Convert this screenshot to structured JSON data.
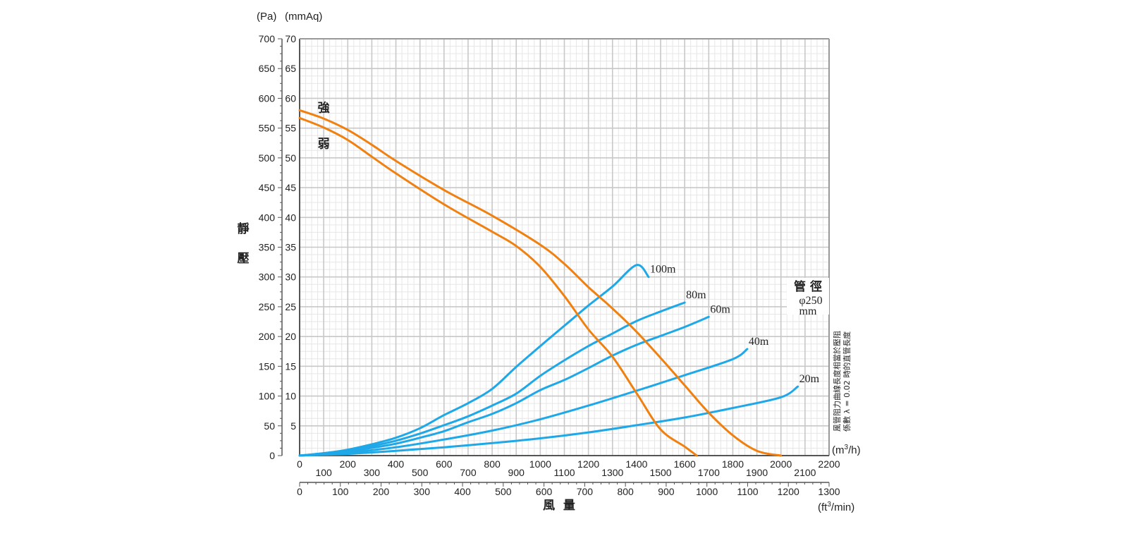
{
  "chart_data": {
    "type": "line",
    "y_axis": {
      "left_unit": "(Pa)",
      "inner_unit": "(mmAq)",
      "label": [
        "靜",
        "壓"
      ],
      "pa_ticks": [
        "0",
        "50",
        "100",
        "150",
        "200",
        "250",
        "300",
        "350",
        "400",
        "450",
        "500",
        "550",
        "600",
        "650",
        "700"
      ],
      "mmaq_ticks": [
        "5",
        "10",
        "15",
        "20",
        "25",
        "30",
        "35",
        "40",
        "45",
        "50",
        "55",
        "60",
        "65",
        "70"
      ],
      "ylim": [
        0,
        700
      ]
    },
    "x_axis": {
      "label": "風  量",
      "m3h_unit_pre": "(m",
      "m3h_unit_sup": "3",
      "m3h_unit_post": "/h)",
      "m3h_ticks_upper": [
        "0",
        "200",
        "400",
        "600",
        "800",
        "1000",
        "1200",
        "1400",
        "1600",
        "1800",
        "2000",
        "2200"
      ],
      "m3h_ticks_lower": [
        "100",
        "300",
        "500",
        "700",
        "900",
        "1100",
        "1300",
        "1500",
        "1700",
        "1900",
        "2100"
      ],
      "xlim": [
        0,
        2200
      ],
      "cfm_unit_pre": "(ft",
      "cfm_unit_sup": "3",
      "cfm_unit_post": "/min)",
      "cfm_ticks": [
        "0",
        "100",
        "200",
        "300",
        "400",
        "500",
        "600",
        "700",
        "800",
        "900",
        "1000",
        "1100",
        "1200",
        "1300"
      ]
    },
    "fan_curves": [
      {
        "name": "強",
        "x": [
          0,
          100,
          200,
          300,
          400,
          600,
          800,
          1000,
          1100,
          1200,
          1300,
          1400,
          1500,
          1600,
          1700,
          1800,
          1900,
          2000
        ],
        "y": [
          580,
          566,
          547,
          522,
          495,
          446,
          403,
          354,
          322,
          283,
          247,
          208,
          164,
          118,
          72,
          34,
          8,
          0
        ]
      },
      {
        "name": "弱",
        "x": [
          0,
          100,
          200,
          300,
          400,
          600,
          800,
          900,
          1000,
          1100,
          1200,
          1300,
          1400,
          1500,
          1600,
          1650
        ],
        "y": [
          567,
          551,
          530,
          502,
          474,
          422,
          376,
          352,
          317,
          268,
          212,
          166,
          105,
          44,
          15,
          0
        ]
      }
    ],
    "duct_curves": [
      {
        "name": "100m",
        "x": [
          0,
          100,
          200,
          300,
          400,
          500,
          600,
          700,
          800,
          900,
          1000,
          1100,
          1200,
          1300,
          1400,
          1450
        ],
        "y": [
          0,
          4,
          10,
          19,
          30,
          46,
          68,
          88,
          112,
          149,
          184,
          218,
          252,
          284,
          320,
          300
        ]
      },
      {
        "name": "80m",
        "x": [
          0,
          100,
          200,
          300,
          400,
          500,
          600,
          700,
          800,
          900,
          1000,
          1100,
          1200,
          1300,
          1400,
          1500,
          1600
        ],
        "y": [
          0,
          4,
          9,
          16,
          25,
          37,
          51,
          66,
          84,
          104,
          134,
          160,
          184,
          205,
          226,
          242,
          257
        ]
      },
      {
        "name": "60m",
        "x": [
          0,
          100,
          200,
          300,
          400,
          500,
          600,
          700,
          800,
          900,
          1000,
          1100,
          1200,
          1300,
          1400,
          1500,
          1600,
          1700
        ],
        "y": [
          0,
          3,
          7,
          13,
          20,
          30,
          41,
          56,
          70,
          88,
          110,
          127,
          147,
          168,
          186,
          201,
          216,
          233
        ]
      },
      {
        "name": "40m",
        "x": [
          0,
          200,
          400,
          600,
          800,
          1000,
          1200,
          1400,
          1600,
          1800,
          1860
        ],
        "y": [
          0,
          5,
          14,
          27,
          42,
          61,
          84,
          109,
          135,
          162,
          179
        ]
      },
      {
        "name": "20m",
        "x": [
          0,
          200,
          400,
          600,
          800,
          1000,
          1200,
          1400,
          1600,
          1800,
          2000,
          2070
        ],
        "y": [
          0,
          3,
          8,
          14,
          21,
          29,
          39,
          51,
          64,
          80,
          98,
          116
        ]
      }
    ],
    "annotations": {
      "duct_title": "管 徑",
      "duct_diameter": "φ250",
      "duct_unit": "mm",
      "note_line1": "風管阻力曲線長度相當於壓阻",
      "note_line2": "係數 λ = 0.02 時的直管長度"
    },
    "colors": {
      "fan": "#f08010",
      "duct": "#1ea8e8",
      "grid_major": "#c8c8c8",
      "grid_minor": "#e6e6e6",
      "axis": "#555555",
      "text": "#222222"
    },
    "grid": true
  }
}
